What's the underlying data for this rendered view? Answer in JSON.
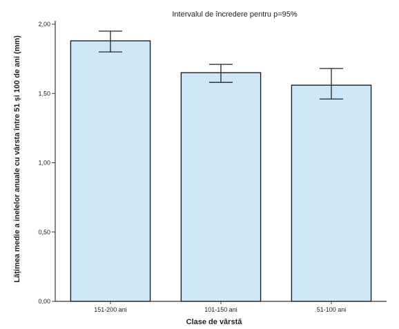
{
  "chart_data": {
    "type": "bar",
    "title": "Intervalul de încredere pentru p=95%",
    "xlabel": "Clase de vârstă",
    "ylabel": "Lățimea medie a inelelor anuale cu vârsta între 51 și 100 de ani (mm)",
    "categories": [
      "151-200 ani",
      "101-150 ani",
      "51-100 ani"
    ],
    "values": [
      1.88,
      1.65,
      1.56
    ],
    "error_low": [
      1.8,
      1.58,
      1.46
    ],
    "error_high": [
      1.95,
      1.71,
      1.68
    ],
    "ylim": [
      0,
      2.0
    ],
    "yticks": [
      0,
      0.5,
      1.0,
      1.5,
      2.0
    ],
    "ytick_labels": [
      "0,00",
      "0,50",
      "1,00",
      "1,50",
      "2,00"
    ],
    "grid": false,
    "colors": {
      "bar_fill": "#cde6f8",
      "bar_stroke": "#1f1f1f",
      "axis": "#333333"
    }
  }
}
